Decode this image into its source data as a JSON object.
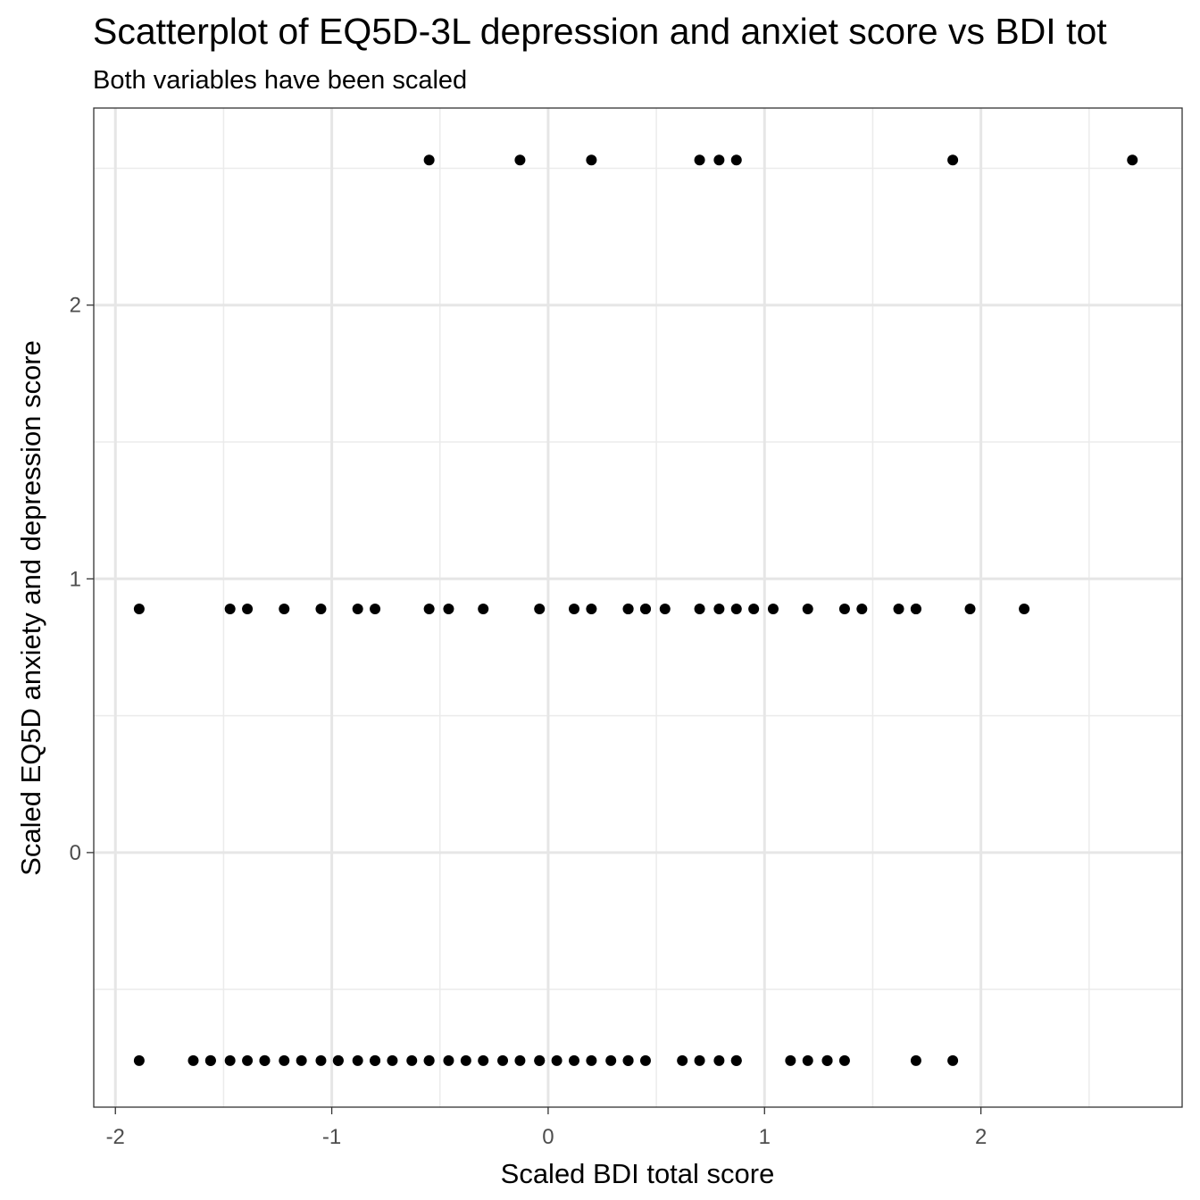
{
  "chart_data": {
    "type": "scatter",
    "title": "Scatterplot of EQ5D-3L depression and anxiet score vs BDI tot",
    "subtitle": "Both variables have been scaled",
    "xlabel": "Scaled BDI total score",
    "ylabel": "Scaled EQ5D anxiety and depression score",
    "xlim": [
      -2.1,
      2.93
    ],
    "ylim": [
      -0.93,
      2.72
    ],
    "x_ticks": [
      -2,
      -1,
      0,
      1,
      2
    ],
    "x_tick_labels": [
      "-2",
      "-1",
      "0",
      "1",
      "2"
    ],
    "y_ticks": [
      0,
      1,
      2
    ],
    "y_tick_labels": [
      "0",
      "1",
      "2"
    ],
    "grid": true,
    "legend": "none",
    "point_color": "#000000",
    "series": [
      {
        "x": [
          -0.55,
          -0.13,
          0.2,
          0.7,
          0.79,
          0.87,
          1.87,
          2.7,
          -1.89,
          -1.47,
          -1.39,
          -1.22,
          -1.05,
          -0.88,
          -0.8,
          -0.55,
          -0.46,
          -0.3,
          -0.04,
          0.12,
          0.2,
          0.37,
          0.37,
          0.45,
          0.45,
          0.54,
          0.7,
          0.79,
          0.87,
          0.95,
          1.04,
          1.2,
          1.37,
          1.45,
          1.62,
          1.7,
          1.7,
          1.95,
          2.2,
          -1.89,
          -1.64,
          -1.56,
          -1.56,
          -1.47,
          -1.39,
          -1.31,
          -1.31,
          -1.22,
          -1.14,
          -1.05,
          -0.97,
          -0.97,
          -0.88,
          -0.8,
          -0.8,
          -0.72,
          -0.63,
          -0.55,
          -0.55,
          -0.46,
          -0.38,
          -0.3,
          -0.21,
          -0.13,
          -0.04,
          -0.04,
          0.04,
          0.12,
          0.2,
          0.29,
          0.37,
          0.37,
          0.45,
          0.62,
          0.7,
          0.79,
          0.87,
          0.87,
          1.12,
          1.2,
          1.29,
          1.29,
          1.37,
          1.7,
          1.87
        ],
        "y": [
          2.53,
          2.53,
          2.53,
          2.53,
          2.53,
          2.53,
          2.53,
          2.53,
          0.89,
          0.89,
          0.89,
          0.89,
          0.89,
          0.89,
          0.89,
          0.89,
          0.89,
          0.89,
          0.89,
          0.89,
          0.89,
          0.89,
          0.89,
          0.89,
          0.89,
          0.89,
          0.89,
          0.89,
          0.89,
          0.89,
          0.89,
          0.89,
          0.89,
          0.89,
          0.89,
          0.89,
          0.89,
          0.89,
          0.89,
          -0.76,
          -0.76,
          -0.76,
          -0.76,
          -0.76,
          -0.76,
          -0.76,
          -0.76,
          -0.76,
          -0.76,
          -0.76,
          -0.76,
          -0.76,
          -0.76,
          -0.76,
          -0.76,
          -0.76,
          -0.76,
          -0.76,
          -0.76,
          -0.76,
          -0.76,
          -0.76,
          -0.76,
          -0.76,
          -0.76,
          -0.76,
          -0.76,
          -0.76,
          -0.76,
          -0.76,
          -0.76,
          -0.76,
          -0.76,
          -0.76,
          -0.76,
          -0.76,
          -0.76,
          -0.76,
          -0.76,
          -0.76,
          -0.76,
          -0.76,
          -0.76,
          -0.76,
          -0.76
        ]
      }
    ]
  }
}
